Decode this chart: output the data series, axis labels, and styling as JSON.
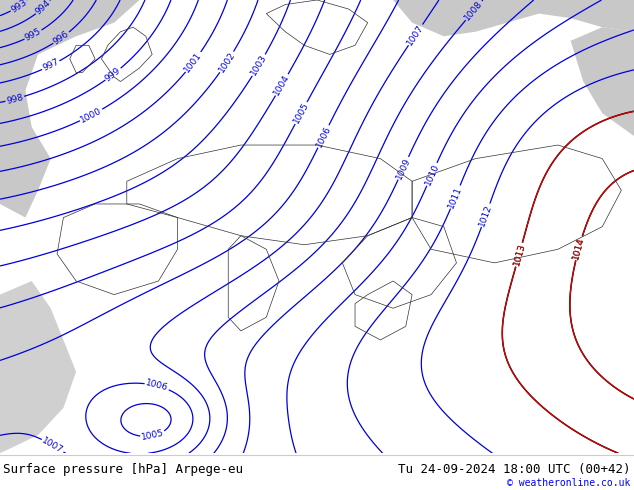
{
  "title_left": "Surface pressure [hPa] Arpege-eu",
  "title_right": "Tu 24-09-2024 18:00 UTC (00+42)",
  "copyright": "© weatheronline.co.uk",
  "bg_color": "#ffffff",
  "map_green": "#a8d4a8",
  "map_green2": "#90c490",
  "ocean_grey": "#c8c8c8",
  "sea_grey": "#d0d0d0",
  "footer_bg": "#ffffff",
  "contour_color_blue": "#0000dd",
  "contour_color_black": "#000000",
  "contour_color_red": "#dd0000",
  "label_fontsize": 6.5,
  "footer_fontsize": 9,
  "figsize": [
    6.34,
    4.9
  ],
  "dpi": 100
}
